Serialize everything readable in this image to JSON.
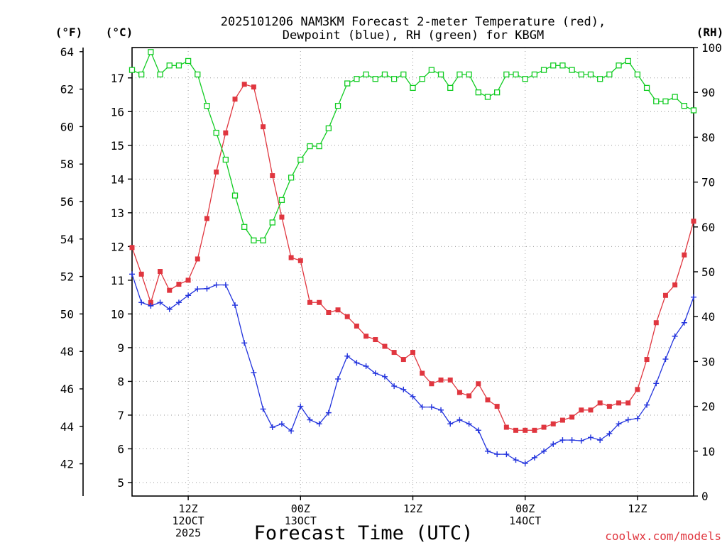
{
  "chart_data": {
    "type": "line",
    "title": [
      "2025101206 NAM3KM Forecast 2-meter Temperature (red),",
      "Dewpoint (blue), RH (green) for KBGM"
    ],
    "xlabel": "Forecast Time (UTC)",
    "credit": "coolwx.com/models",
    "units": {
      "fahrenheit": "(°F)",
      "celsius": "(°C)",
      "rh": "(RH)"
    },
    "x_range": [
      0,
      60
    ],
    "x_ticks": [
      {
        "x": 6,
        "lines": [
          "12Z",
          "12OCT",
          "2025"
        ]
      },
      {
        "x": 18,
        "lines": [
          "00Z",
          "13OCT"
        ]
      },
      {
        "x": 30,
        "lines": [
          "12Z"
        ]
      },
      {
        "x": 42,
        "lines": [
          "00Z",
          "14OCT"
        ]
      },
      {
        "x": 54,
        "lines": [
          "12Z"
        ]
      }
    ],
    "celsius_axis": {
      "range": [
        4.6,
        17.9
      ],
      "ticks": [
        5,
        6,
        7,
        8,
        9,
        10,
        11,
        12,
        13,
        14,
        15,
        16,
        17
      ]
    },
    "fahrenheit_axis": {
      "ticks": [
        42,
        44,
        46,
        48,
        50,
        52,
        54,
        56,
        58,
        60,
        62,
        64
      ]
    },
    "rh_axis": {
      "range": [
        0,
        100
      ],
      "ticks": [
        0,
        10,
        20,
        30,
        40,
        50,
        60,
        70,
        80,
        90,
        100
      ]
    },
    "series": [
      {
        "name": "Temperature",
        "units": "C",
        "color": "#e0363f",
        "marker": "filled-square",
        "values": [
          11.97,
          11.18,
          10.34,
          11.26,
          10.7,
          10.88,
          11.0,
          11.63,
          12.83,
          14.21,
          15.37,
          16.37,
          16.81,
          16.73,
          15.55,
          14.1,
          12.87,
          11.67,
          11.58,
          10.34,
          10.34,
          10.04,
          10.12,
          9.92,
          9.64,
          9.34,
          9.24,
          9.04,
          8.86,
          8.65,
          8.86,
          8.24,
          7.93,
          8.04,
          8.04,
          7.67,
          7.57,
          7.93,
          7.45,
          7.26,
          6.64,
          6.55,
          6.55,
          6.55,
          6.64,
          6.74,
          6.85,
          6.94,
          7.15,
          7.15,
          7.36,
          7.26,
          7.36,
          7.36,
          7.76,
          8.65,
          9.74,
          10.55,
          10.86,
          11.75,
          12.75
        ]
      },
      {
        "name": "Dewpoint",
        "units": "C",
        "color": "#2233dd",
        "marker": "plus",
        "values": [
          11.18,
          10.34,
          10.24,
          10.34,
          10.14,
          10.34,
          10.55,
          10.74,
          10.75,
          10.86,
          10.86,
          10.26,
          9.14,
          8.26,
          7.18,
          6.64,
          6.74,
          6.53,
          7.26,
          6.86,
          6.74,
          7.07,
          8.07,
          8.75,
          8.55,
          8.45,
          8.24,
          8.14,
          7.86,
          7.76,
          7.55,
          7.24,
          7.24,
          7.15,
          6.74,
          6.86,
          6.74,
          6.55,
          5.93,
          5.84,
          5.84,
          5.67,
          5.57,
          5.74,
          5.93,
          6.14,
          6.26,
          6.26,
          6.24,
          6.34,
          6.26,
          6.45,
          6.74,
          6.86,
          6.9,
          7.3,
          7.94,
          8.66,
          9.34,
          9.74,
          10.5
        ]
      },
      {
        "name": "RH",
        "units": "%",
        "color": "#11cc22",
        "marker": "open-square",
        "values": [
          95,
          94,
          99,
          94,
          96,
          96,
          97,
          94,
          87,
          81,
          75,
          67,
          60,
          57,
          57,
          61,
          66,
          71,
          75,
          78,
          78,
          82,
          87,
          92,
          93,
          94,
          93,
          94,
          93,
          94,
          91,
          93,
          95,
          94,
          91,
          94,
          94,
          90,
          89,
          90,
          94,
          94,
          93,
          94,
          95,
          96,
          96,
          95,
          94,
          94,
          93,
          94,
          96,
          97,
          94,
          91,
          88,
          88,
          89,
          87,
          86
        ]
      }
    ]
  }
}
